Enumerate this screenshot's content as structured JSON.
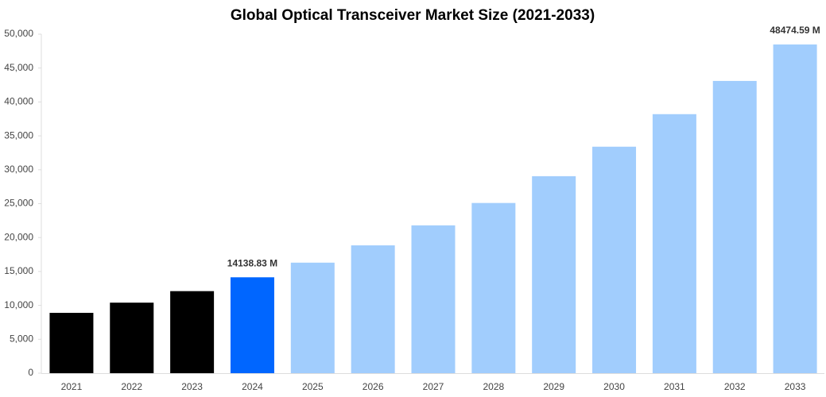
{
  "chart_data": {
    "type": "bar",
    "title": "Global Optical Transceiver Market Size (2021-2033)",
    "categories": [
      "2021",
      "2022",
      "2023",
      "2024",
      "2025",
      "2026",
      "2027",
      "2028",
      "2029",
      "2030",
      "2031",
      "2032",
      "2033"
    ],
    "values": [
      8900,
      10400,
      12100,
      14138.83,
      16300,
      18850,
      21800,
      25100,
      29050,
      33400,
      38200,
      43100,
      48474.59
    ],
    "value_labels": [
      null,
      null,
      null,
      "14138.83 M",
      null,
      null,
      null,
      null,
      null,
      null,
      null,
      null,
      "48474.59 M"
    ],
    "colors": [
      "#000000",
      "#000000",
      "#000000",
      "#0066ff",
      "#a1cdfd",
      "#a1cdfd",
      "#a1cdfd",
      "#a1cdfd",
      "#a1cdfd",
      "#a1cdfd",
      "#a1cdfd",
      "#a1cdfd",
      "#a1cdfd"
    ],
    "ylim": [
      0,
      50000
    ],
    "yticks": [
      0,
      {
        "value": 5000,
        "label": "5,000"
      },
      {
        "value": 10000,
        "label": "10,000"
      },
      {
        "value": 15000,
        "label": "15,000"
      },
      {
        "value": 20000,
        "label": "20,000"
      },
      {
        "value": 25000,
        "label": "25,000"
      },
      {
        "value": 30000,
        "label": "30,000"
      },
      {
        "value": 35000,
        "label": "35,000"
      },
      {
        "value": 40000,
        "label": "40,000"
      },
      {
        "value": 45000,
        "label": "45,000"
      },
      {
        "value": 50000,
        "label": "50,000"
      }
    ],
    "grid": false
  }
}
